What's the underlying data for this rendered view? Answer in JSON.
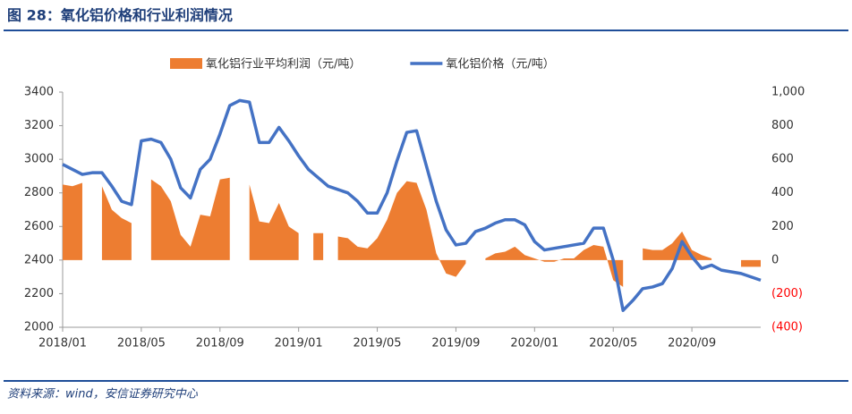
{
  "chart_data": {
    "type": "combo",
    "title": "图 28：氧化铝价格和行业利润情况",
    "source": "资料来源：wind，安信证券研究中心",
    "categories": [
      "2018/01",
      null,
      null,
      null,
      null,
      null,
      null,
      null,
      "2018/05",
      null,
      null,
      null,
      null,
      null,
      null,
      null,
      "2018/09",
      null,
      null,
      null,
      null,
      null,
      null,
      null,
      "2019/01",
      null,
      null,
      null,
      null,
      null,
      null,
      null,
      "2019/05",
      null,
      null,
      null,
      null,
      null,
      null,
      null,
      "2019/09",
      null,
      null,
      null,
      null,
      null,
      null,
      null,
      "2020/01",
      null,
      null,
      null,
      null,
      null,
      null,
      null,
      "2020/05",
      null,
      null,
      null,
      null,
      null,
      null,
      null,
      "2020/09",
      null,
      null,
      null,
      null,
      null,
      null,
      null
    ],
    "series": [
      {
        "name": "氧化铝行业平均利润（元/吨）",
        "type": "area",
        "axis": "y2",
        "color": "#ed7d31",
        "values": [
          450,
          440,
          460,
          null,
          440,
          300,
          250,
          220,
          null,
          480,
          440,
          350,
          150,
          80,
          270,
          260,
          480,
          490,
          null,
          450,
          230,
          220,
          340,
          200,
          160,
          null,
          160,
          null,
          140,
          130,
          80,
          70,
          130,
          240,
          400,
          470,
          460,
          300,
          40,
          -80,
          -100,
          -20,
          null,
          10,
          40,
          50,
          80,
          30,
          10,
          -10,
          -10,
          10,
          10,
          60,
          90,
          80,
          -120,
          -160,
          null,
          70,
          60,
          60,
          100,
          170,
          60,
          30,
          10,
          null,
          null,
          -40,
          -40,
          -40
        ]
      },
      {
        "name": "氧化铝价格（元/吨）",
        "type": "line",
        "axis": "y",
        "color": "#4472c4",
        "values": [
          2970,
          2940,
          2910,
          2920,
          2920,
          2840,
          2750,
          2730,
          3110,
          3120,
          3100,
          3000,
          2830,
          2770,
          2940,
          3000,
          3150,
          3320,
          3350,
          3340,
          3100,
          3100,
          3190,
          3110,
          3020,
          2940,
          2890,
          2840,
          2820,
          2800,
          2750,
          2680,
          2680,
          2800,
          2990,
          3160,
          3170,
          2960,
          2750,
          2580,
          2490,
          2500,
          2570,
          2590,
          2620,
          2640,
          2640,
          2610,
          2510,
          2460,
          2470,
          2480,
          2490,
          2500,
          2590,
          2590,
          2400,
          2100,
          2160,
          2230,
          2240,
          2260,
          2350,
          2510,
          2420,
          2350,
          2370,
          2340,
          2330,
          2320,
          2300,
          2280
        ]
      }
    ],
    "ylim": [
      2000,
      3400
    ],
    "yticks": [
      2000,
      2200,
      2400,
      2600,
      2800,
      3000,
      3200,
      3400
    ],
    "y2lim": [
      -400,
      1000
    ],
    "y2ticks": [
      {
        "value": -400,
        "label": "(400)"
      },
      {
        "value": -200,
        "label": "(200)"
      },
      0,
      200,
      400,
      600,
      800,
      {
        "value": 1000,
        "label": "1,000"
      }
    ],
    "y2_negative_color": "#ff0000"
  }
}
